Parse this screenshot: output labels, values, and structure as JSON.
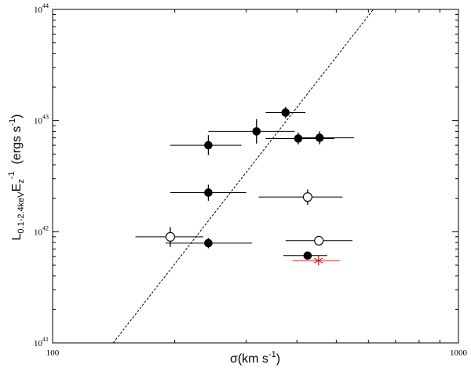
{
  "chart_data": {
    "type": "scatter",
    "x_scale": "log",
    "y_scale": "log",
    "xlim": [
      100,
      1000
    ],
    "ylim": [
      1e+41,
      1e+44
    ],
    "x_ticks": [
      {
        "value": 100,
        "label": "100"
      },
      {
        "value": 1000,
        "label": "1000"
      }
    ],
    "y_ticks": [
      {
        "value": 1e+41,
        "base": "10",
        "exp": "41"
      },
      {
        "value": 1e+42,
        "base": "10",
        "exp": "42"
      },
      {
        "value": 1e+43,
        "base": "10",
        "exp": "43"
      },
      {
        "value": 1e+44,
        "base": "10",
        "exp": "44"
      }
    ],
    "xlabel": {
      "main": "σ(km s",
      "sup": "-1",
      "close": ")"
    },
    "ylabel": {
      "l": "L",
      "lsub": "0.1-2.4keV",
      "e": "E",
      "esub": "z",
      "esup": "-1",
      "units": "  (ergs s",
      "usup": "-1",
      "uclose": ")"
    },
    "grid": false,
    "series": [
      {
        "marker": "filled-circle",
        "color": "#000000",
        "points": [
          {
            "x": 375,
            "y": 1.18e+43,
            "xerr": [
              335,
              420
            ],
            "yerr": [
              1.05e+43,
              1.33e+43
            ]
          },
          {
            "x": 318,
            "y": 8e+42,
            "xerr": [
              242,
              395
            ],
            "yerr": [
              6.2e+42,
              1.03e+43
            ]
          },
          {
            "x": 403,
            "y": 6.9e+42,
            "xerr": [
              335,
              495
            ],
            "yerr": [
              6.1e+42,
              7.8e+42
            ]
          },
          {
            "x": 455,
            "y": 7e+42,
            "xerr": [
              410,
              553
            ],
            "yerr": [
              6.1e+42,
              8e+42
            ]
          },
          {
            "x": 242,
            "y": 6e+42,
            "xerr": [
              195,
              292
            ],
            "yerr": [
              4.9e+42,
              7.4e+42
            ]
          },
          {
            "x": 242,
            "y": 2.25e+42,
            "xerr": [
              195,
              300
            ],
            "yerr": [
              1.9e+42,
              2.65e+42
            ]
          },
          {
            "x": 242,
            "y": 7.9e+41,
            "xerr": [
              190,
              310
            ],
            "yerr": [
              7.1e+41,
              8.8e+41
            ]
          },
          {
            "x": 425,
            "y": 6.1e+41,
            "xerr": [
              370,
              475
            ]
          }
        ]
      },
      {
        "marker": "open-circle",
        "color": "#000000",
        "points": [
          {
            "x": 195,
            "y": 9e+41,
            "xerr": [
              160,
              235
            ],
            "yerr": [
              7.3e+41,
              1.1e+42
            ]
          },
          {
            "x": 425,
            "y": 2.05e+42,
            "xerr": [
              322,
              518
            ],
            "yerr": [
              1.75e+42,
              2.4e+42
            ]
          },
          {
            "x": 453,
            "y": 8.3e+41,
            "xerr": [
              375,
              548
            ]
          }
        ]
      },
      {
        "marker": "asterisk",
        "color": "#e02020",
        "points": [
          {
            "x": 452,
            "y": 5.5e+41,
            "xerr": [
              390,
              510
            ]
          }
        ]
      }
    ],
    "fit_line": {
      "style": "dashed",
      "color": "#000000",
      "points": [
        [
          141,
          1e+41
        ],
        [
          617,
          1e+44
        ]
      ]
    }
  }
}
